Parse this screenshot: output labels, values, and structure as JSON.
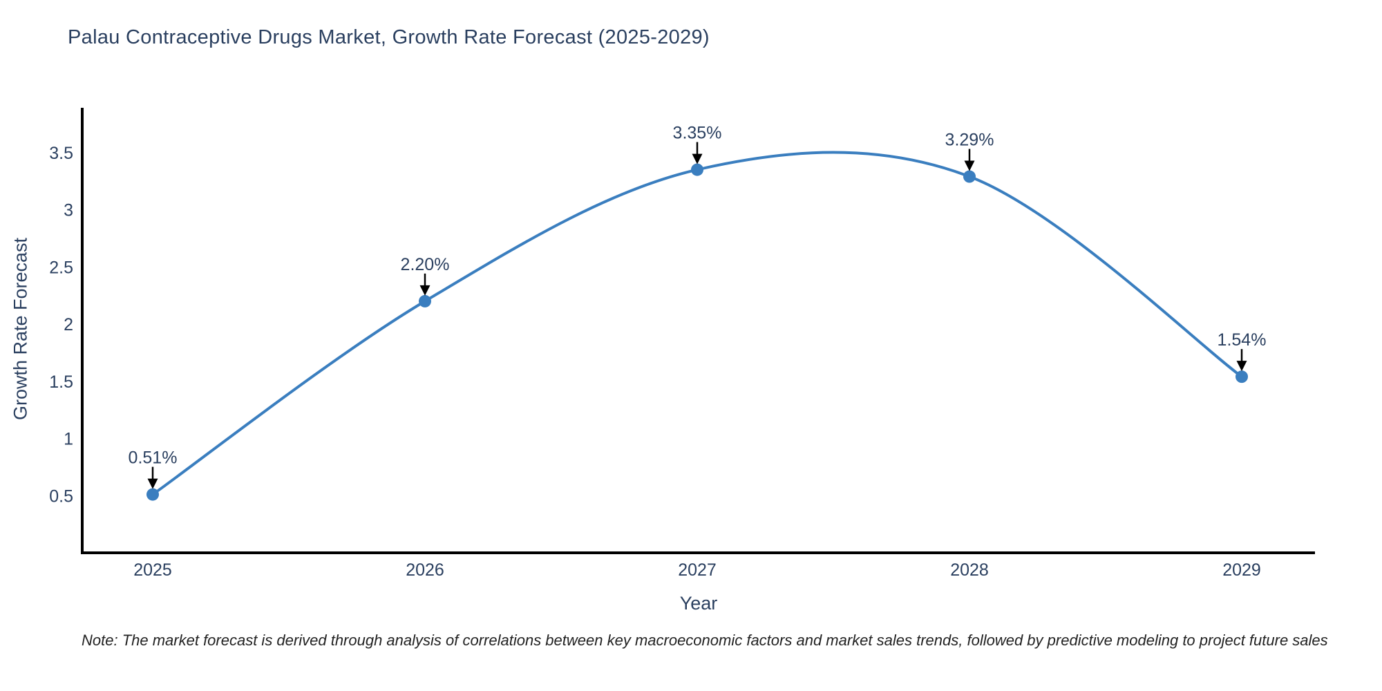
{
  "title": "Palau Contraceptive Drugs Market, Growth Rate Forecast (2025-2029)",
  "note": "Note: The market forecast is derived through analysis of correlations between key macroeconomic factors and market sales trends, followed by predictive modeling to project future sales",
  "chart_data": {
    "type": "line",
    "title": "Palau Contraceptive Drugs Market, Growth Rate Forecast (2025-2029)",
    "xlabel": "Year",
    "ylabel": "Growth Rate Forecast",
    "categories": [
      "2025",
      "2026",
      "2027",
      "2028",
      "2029"
    ],
    "values": [
      0.51,
      2.2,
      3.35,
      3.29,
      1.54
    ],
    "point_labels": [
      "0.51%",
      "2.20%",
      "3.35%",
      "3.29%",
      "1.54%"
    ],
    "yticks": [
      0.5,
      1,
      1.5,
      2,
      2.5,
      3,
      3.5
    ],
    "ylim": [
      0,
      3.9
    ],
    "line_shape": "spline",
    "grid": "off",
    "legend": "none",
    "colors": {
      "line": "#3a7ebf",
      "marker": "#3a7ebf",
      "axis_line": "#000000",
      "text": "#2a3f5f",
      "annotation_arrow": "#000000",
      "background": "#ffffff"
    }
  }
}
